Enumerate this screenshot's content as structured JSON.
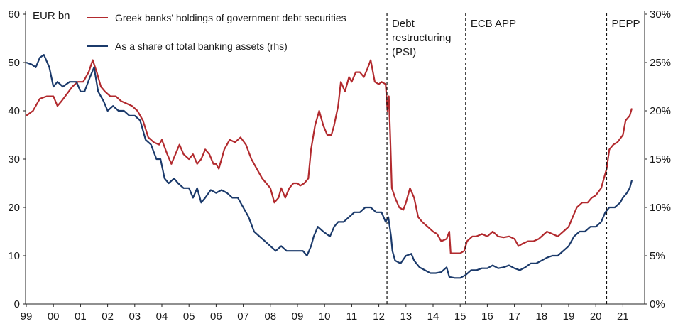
{
  "chart_data": {
    "type": "line",
    "left_axis_unit": "EUR bn",
    "yleft_ticks": [
      "0",
      "10",
      "20",
      "30",
      "40",
      "50",
      "60"
    ],
    "yleft_lim": [
      0,
      60
    ],
    "yright_ticks": [
      "0%",
      "5%",
      "10%",
      "15%",
      "20%",
      "25%",
      "30%"
    ],
    "yright_lim": [
      0,
      30
    ],
    "x_ticks": [
      "99",
      "00",
      "01",
      "02",
      "03",
      "04",
      "05",
      "06",
      "07",
      "08",
      "09",
      "10",
      "11",
      "12",
      "13",
      "14",
      "15",
      "16",
      "17",
      "18",
      "19",
      "20",
      "21"
    ],
    "x_tick_years": [
      1999,
      2000,
      2001,
      2002,
      2003,
      2004,
      2005,
      2006,
      2007,
      2008,
      2009,
      2010,
      2011,
      2012,
      2013,
      2014,
      2015,
      2016,
      2017,
      2018,
      2019,
      2020,
      2021
    ],
    "x_range": [
      1999.0,
      2022.0
    ],
    "series": [
      {
        "name": "Greek banks' holdings of government debt securities",
        "axis": "left",
        "color": "#b22a2e",
        "points": [
          [
            1999.0,
            39
          ],
          [
            1999.25,
            40
          ],
          [
            1999.5,
            42.5
          ],
          [
            1999.75,
            43
          ],
          [
            2000.0,
            43
          ],
          [
            2000.15,
            41
          ],
          [
            2000.3,
            42
          ],
          [
            2000.5,
            43.5
          ],
          [
            2000.7,
            45
          ],
          [
            2000.9,
            46
          ],
          [
            2001.1,
            46
          ],
          [
            2001.3,
            48
          ],
          [
            2001.45,
            50.5
          ],
          [
            2001.6,
            48
          ],
          [
            2001.75,
            45
          ],
          [
            2001.9,
            44
          ],
          [
            2002.1,
            43
          ],
          [
            2002.3,
            43
          ],
          [
            2002.5,
            42
          ],
          [
            2002.7,
            41.5
          ],
          [
            2002.9,
            41
          ],
          [
            2003.1,
            40
          ],
          [
            2003.3,
            38
          ],
          [
            2003.5,
            34.5
          ],
          [
            2003.7,
            33.5
          ],
          [
            2003.9,
            33
          ],
          [
            2004.0,
            34
          ],
          [
            2004.2,
            31
          ],
          [
            2004.35,
            29
          ],
          [
            2004.5,
            31
          ],
          [
            2004.65,
            33
          ],
          [
            2004.8,
            31
          ],
          [
            2005.0,
            30
          ],
          [
            2005.15,
            31
          ],
          [
            2005.3,
            29
          ],
          [
            2005.45,
            30
          ],
          [
            2005.6,
            32
          ],
          [
            2005.75,
            31
          ],
          [
            2005.9,
            29
          ],
          [
            2006.0,
            29
          ],
          [
            2006.1,
            28
          ],
          [
            2006.3,
            32
          ],
          [
            2006.5,
            34
          ],
          [
            2006.7,
            33.5
          ],
          [
            2006.9,
            34.5
          ],
          [
            2007.1,
            33
          ],
          [
            2007.3,
            30
          ],
          [
            2007.5,
            28
          ],
          [
            2007.7,
            26
          ],
          [
            2007.85,
            25
          ],
          [
            2008.0,
            24
          ],
          [
            2008.15,
            21
          ],
          [
            2008.3,
            22
          ],
          [
            2008.4,
            24
          ],
          [
            2008.55,
            22
          ],
          [
            2008.7,
            24
          ],
          [
            2008.85,
            25
          ],
          [
            2009.0,
            25
          ],
          [
            2009.1,
            24.5
          ],
          [
            2009.25,
            25
          ],
          [
            2009.4,
            26
          ],
          [
            2009.5,
            32
          ],
          [
            2009.65,
            37
          ],
          [
            2009.8,
            40
          ],
          [
            2009.95,
            37
          ],
          [
            2010.1,
            35
          ],
          [
            2010.25,
            35
          ],
          [
            2010.35,
            37
          ],
          [
            2010.5,
            41
          ],
          [
            2010.6,
            46
          ],
          [
            2010.75,
            44
          ],
          [
            2010.9,
            47
          ],
          [
            2011.0,
            46
          ],
          [
            2011.15,
            48
          ],
          [
            2011.3,
            48
          ],
          [
            2011.45,
            47
          ],
          [
            2011.6,
            49
          ],
          [
            2011.7,
            50.5
          ],
          [
            2011.85,
            46
          ],
          [
            2012.0,
            45.5
          ],
          [
            2012.1,
            46
          ],
          [
            2012.25,
            45.5
          ],
          [
            2012.32,
            40
          ],
          [
            2012.37,
            43
          ],
          [
            2012.42,
            35
          ],
          [
            2012.48,
            24
          ],
          [
            2012.6,
            22
          ],
          [
            2012.75,
            20
          ],
          [
            2012.9,
            19.5
          ],
          [
            2013.0,
            21
          ],
          [
            2013.15,
            24
          ],
          [
            2013.3,
            22
          ],
          [
            2013.45,
            18
          ],
          [
            2013.6,
            17
          ],
          [
            2013.8,
            16
          ],
          [
            2014.0,
            15
          ],
          [
            2014.15,
            14.5
          ],
          [
            2014.3,
            13
          ],
          [
            2014.5,
            13.5
          ],
          [
            2014.6,
            15
          ],
          [
            2014.65,
            10.5
          ],
          [
            2014.8,
            10.5
          ],
          [
            2015.0,
            10.5
          ],
          [
            2015.15,
            11
          ],
          [
            2015.25,
            13
          ],
          [
            2015.45,
            14
          ],
          [
            2015.6,
            14
          ],
          [
            2015.8,
            14.5
          ],
          [
            2016.0,
            14
          ],
          [
            2016.2,
            15
          ],
          [
            2016.4,
            14
          ],
          [
            2016.6,
            13.8
          ],
          [
            2016.8,
            14
          ],
          [
            2017.0,
            13.5
          ],
          [
            2017.15,
            12
          ],
          [
            2017.3,
            12.5
          ],
          [
            2017.5,
            13
          ],
          [
            2017.7,
            13
          ],
          [
            2017.9,
            13.5
          ],
          [
            2018.0,
            14
          ],
          [
            2018.2,
            15
          ],
          [
            2018.4,
            14.5
          ],
          [
            2018.6,
            14
          ],
          [
            2018.8,
            15
          ],
          [
            2019.0,
            16
          ],
          [
            2019.15,
            18
          ],
          [
            2019.3,
            20
          ],
          [
            2019.5,
            21
          ],
          [
            2019.7,
            21
          ],
          [
            2019.85,
            22
          ],
          [
            2020.0,
            22.5
          ],
          [
            2020.2,
            24
          ],
          [
            2020.4,
            28
          ],
          [
            2020.5,
            32
          ],
          [
            2020.65,
            33
          ],
          [
            2020.8,
            33.5
          ],
          [
            2021.0,
            35
          ],
          [
            2021.1,
            38
          ],
          [
            2021.25,
            39
          ],
          [
            2021.33,
            40.5
          ]
        ]
      },
      {
        "name": "As a share of total banking assets (rhs)",
        "axis": "right",
        "color": "#1b3a6b",
        "points": [
          [
            1999.0,
            25
          ],
          [
            1999.2,
            24.8
          ],
          [
            1999.35,
            24.5
          ],
          [
            1999.5,
            25.5
          ],
          [
            1999.65,
            25.8
          ],
          [
            1999.85,
            24.5
          ],
          [
            2000.0,
            22.5
          ],
          [
            2000.15,
            23
          ],
          [
            2000.35,
            22.5
          ],
          [
            2000.6,
            23
          ],
          [
            2000.85,
            23
          ],
          [
            2001.0,
            22
          ],
          [
            2001.15,
            22
          ],
          [
            2001.35,
            23.5
          ],
          [
            2001.5,
            24.5
          ],
          [
            2001.65,
            22
          ],
          [
            2001.85,
            21
          ],
          [
            2002.0,
            20
          ],
          [
            2002.2,
            20.5
          ],
          [
            2002.4,
            20
          ],
          [
            2002.6,
            20
          ],
          [
            2002.8,
            19.5
          ],
          [
            2003.0,
            19.5
          ],
          [
            2003.2,
            19
          ],
          [
            2003.4,
            17
          ],
          [
            2003.6,
            16.5
          ],
          [
            2003.8,
            15
          ],
          [
            2003.95,
            15
          ],
          [
            2004.1,
            13
          ],
          [
            2004.25,
            12.5
          ],
          [
            2004.45,
            13
          ],
          [
            2004.6,
            12.5
          ],
          [
            2004.8,
            12
          ],
          [
            2005.0,
            12
          ],
          [
            2005.15,
            11
          ],
          [
            2005.3,
            12
          ],
          [
            2005.45,
            10.5
          ],
          [
            2005.6,
            11
          ],
          [
            2005.8,
            11.8
          ],
          [
            2006.0,
            11.5
          ],
          [
            2006.2,
            11.8
          ],
          [
            2006.4,
            11.5
          ],
          [
            2006.6,
            11
          ],
          [
            2006.8,
            11
          ],
          [
            2007.0,
            10
          ],
          [
            2007.2,
            9
          ],
          [
            2007.4,
            7.5
          ],
          [
            2007.6,
            7
          ],
          [
            2007.8,
            6.5
          ],
          [
            2008.0,
            6
          ],
          [
            2008.2,
            5.5
          ],
          [
            2008.4,
            6
          ],
          [
            2008.6,
            5.5
          ],
          [
            2008.8,
            5.5
          ],
          [
            2009.0,
            5.5
          ],
          [
            2009.2,
            5.5
          ],
          [
            2009.35,
            5
          ],
          [
            2009.5,
            6
          ],
          [
            2009.6,
            7
          ],
          [
            2009.75,
            8
          ],
          [
            2009.95,
            7.5
          ],
          [
            2010.2,
            7
          ],
          [
            2010.35,
            8
          ],
          [
            2010.5,
            8.5
          ],
          [
            2010.7,
            8.5
          ],
          [
            2010.9,
            9
          ],
          [
            2011.1,
            9.5
          ],
          [
            2011.3,
            9.5
          ],
          [
            2011.5,
            10
          ],
          [
            2011.7,
            10
          ],
          [
            2011.9,
            9.5
          ],
          [
            2012.1,
            9.5
          ],
          [
            2012.25,
            8.5
          ],
          [
            2012.35,
            9
          ],
          [
            2012.45,
            7
          ],
          [
            2012.5,
            5.5
          ],
          [
            2012.6,
            4.5
          ],
          [
            2012.8,
            4.2
          ],
          [
            2013.0,
            5
          ],
          [
            2013.2,
            5.2
          ],
          [
            2013.3,
            4.5
          ],
          [
            2013.5,
            3.8
          ],
          [
            2013.7,
            3.5
          ],
          [
            2013.9,
            3.2
          ],
          [
            2014.1,
            3.2
          ],
          [
            2014.3,
            3.3
          ],
          [
            2014.5,
            3.8
          ],
          [
            2014.6,
            2.8
          ],
          [
            2014.8,
            2.7
          ],
          [
            2015.0,
            2.7
          ],
          [
            2015.2,
            3
          ],
          [
            2015.4,
            3.5
          ],
          [
            2015.6,
            3.5
          ],
          [
            2015.8,
            3.7
          ],
          [
            2016.0,
            3.7
          ],
          [
            2016.2,
            4
          ],
          [
            2016.4,
            3.7
          ],
          [
            2016.6,
            3.8
          ],
          [
            2016.8,
            4
          ],
          [
            2017.0,
            3.7
          ],
          [
            2017.2,
            3.5
          ],
          [
            2017.4,
            3.8
          ],
          [
            2017.6,
            4.2
          ],
          [
            2017.8,
            4.2
          ],
          [
            2018.0,
            4.5
          ],
          [
            2018.2,
            4.8
          ],
          [
            2018.4,
            5
          ],
          [
            2018.6,
            5
          ],
          [
            2018.8,
            5.5
          ],
          [
            2019.0,
            6
          ],
          [
            2019.2,
            7
          ],
          [
            2019.4,
            7.5
          ],
          [
            2019.6,
            7.5
          ],
          [
            2019.8,
            8
          ],
          [
            2020.0,
            8
          ],
          [
            2020.2,
            8.5
          ],
          [
            2020.35,
            9.5
          ],
          [
            2020.5,
            10
          ],
          [
            2020.7,
            10
          ],
          [
            2020.9,
            10.5
          ],
          [
            2021.0,
            11
          ],
          [
            2021.15,
            11.5
          ],
          [
            2021.25,
            12
          ],
          [
            2021.33,
            12.8
          ]
        ]
      }
    ],
    "events": [
      {
        "label_lines": [
          "Debt",
          "restructuring",
          "(PSI)"
        ],
        "x": 2012.3
      },
      {
        "label_lines": [
          "ECB APP"
        ],
        "x": 2015.2
      },
      {
        "label_lines": [
          "PEPP"
        ],
        "x": 2020.4
      }
    ]
  }
}
